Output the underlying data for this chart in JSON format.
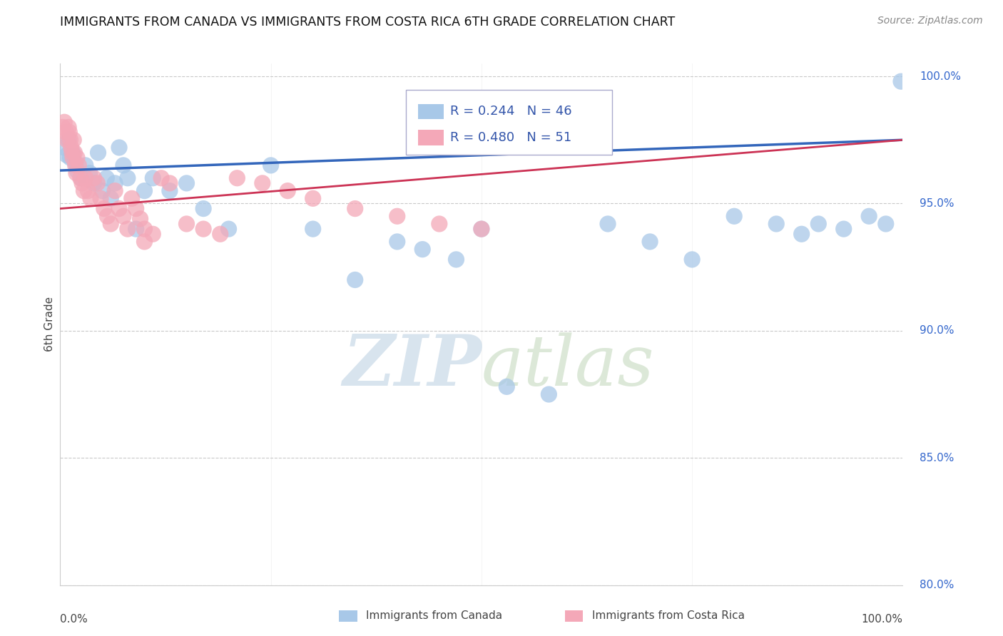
{
  "title": "IMMIGRANTS FROM CANADA VS IMMIGRANTS FROM COSTA RICA 6TH GRADE CORRELATION CHART",
  "source": "Source: ZipAtlas.com",
  "ylabel": "6th Grade",
  "canada_R": 0.244,
  "canada_N": 46,
  "costarica_R": 0.48,
  "costarica_N": 51,
  "canada_color": "#a8c8e8",
  "costarica_color": "#f4a8b8",
  "canada_line_color": "#3366bb",
  "costarica_line_color": "#cc3355",
  "watermark_color": "#e0e8f0",
  "xmin": 0.0,
  "xmax": 1.0,
  "ymin": 0.8,
  "ymax": 1.005,
  "yticks": [
    0.8,
    0.85,
    0.9,
    0.95,
    1.0
  ],
  "ytick_labels": [
    "80.0%",
    "85.0%",
    "90.0%",
    "95.0%",
    "100.0%"
  ],
  "canada_x": [
    0.005,
    0.008,
    0.01,
    0.012,
    0.015,
    0.018,
    0.02,
    0.025,
    0.03,
    0.035,
    0.04,
    0.045,
    0.05,
    0.055,
    0.06,
    0.065,
    0.07,
    0.075,
    0.08,
    0.09,
    0.1,
    0.11,
    0.13,
    0.15,
    0.17,
    0.2,
    0.25,
    0.3,
    0.35,
    0.4,
    0.43,
    0.47,
    0.5,
    0.53,
    0.58,
    0.65,
    0.7,
    0.75,
    0.8,
    0.85,
    0.88,
    0.9,
    0.93,
    0.96,
    0.98,
    0.998
  ],
  "canada_y": [
    0.972,
    0.969,
    0.975,
    0.968,
    0.97,
    0.966,
    0.963,
    0.96,
    0.965,
    0.962,
    0.958,
    0.97,
    0.955,
    0.96,
    0.952,
    0.958,
    0.972,
    0.965,
    0.96,
    0.94,
    0.955,
    0.96,
    0.955,
    0.958,
    0.948,
    0.94,
    0.965,
    0.94,
    0.92,
    0.935,
    0.932,
    0.928,
    0.94,
    0.878,
    0.875,
    0.942,
    0.935,
    0.928,
    0.945,
    0.942,
    0.938,
    0.942,
    0.94,
    0.945,
    0.942,
    0.998
  ],
  "costarica_x": [
    0.003,
    0.005,
    0.007,
    0.008,
    0.01,
    0.011,
    0.012,
    0.013,
    0.014,
    0.015,
    0.016,
    0.017,
    0.018,
    0.019,
    0.02,
    0.022,
    0.024,
    0.026,
    0.028,
    0.03,
    0.033,
    0.036,
    0.04,
    0.044,
    0.048,
    0.052,
    0.056,
    0.06,
    0.065,
    0.07,
    0.075,
    0.08,
    0.085,
    0.09,
    0.095,
    0.1,
    0.11,
    0.12,
    0.13,
    0.15,
    0.17,
    0.19,
    0.21,
    0.24,
    0.27,
    0.3,
    0.35,
    0.4,
    0.45,
    0.5,
    0.1
  ],
  "costarica_y": [
    0.98,
    0.982,
    0.978,
    0.975,
    0.98,
    0.978,
    0.975,
    0.972,
    0.97,
    0.968,
    0.975,
    0.97,
    0.965,
    0.962,
    0.968,
    0.965,
    0.96,
    0.958,
    0.955,
    0.96,
    0.955,
    0.952,
    0.96,
    0.958,
    0.952,
    0.948,
    0.945,
    0.942,
    0.955,
    0.948,
    0.945,
    0.94,
    0.952,
    0.948,
    0.944,
    0.94,
    0.938,
    0.96,
    0.958,
    0.942,
    0.94,
    0.938,
    0.96,
    0.958,
    0.955,
    0.952,
    0.948,
    0.945,
    0.942,
    0.94,
    0.935
  ]
}
